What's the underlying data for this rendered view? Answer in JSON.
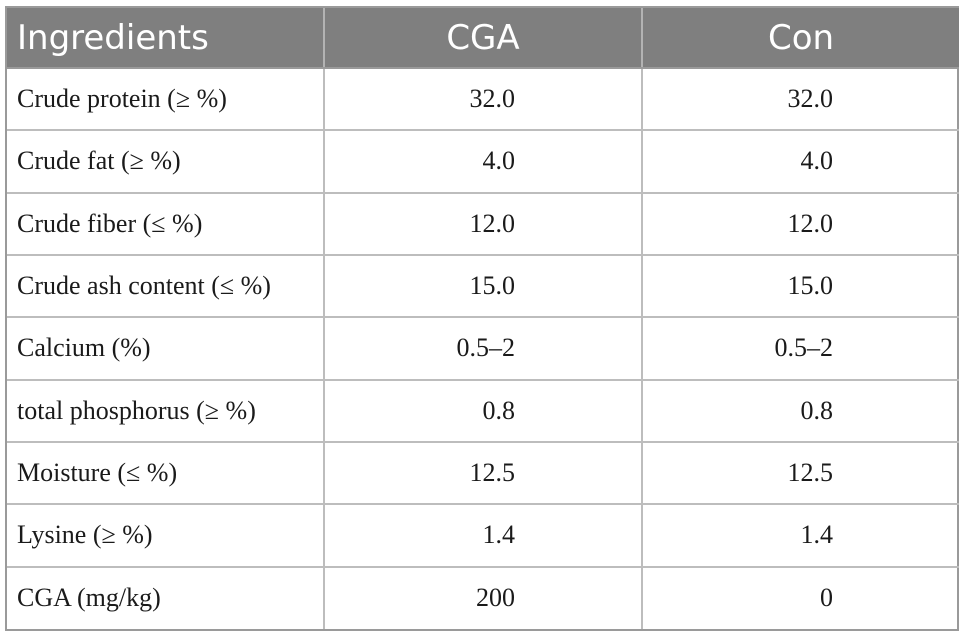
{
  "table": {
    "headers": [
      "Ingredients",
      "CGA",
      "Con"
    ],
    "rows": [
      [
        "Crude protein (≥ %)",
        "32.0",
        "32.0"
      ],
      [
        "Crude fat (≥ %)",
        "4.0",
        "4.0"
      ],
      [
        "Crude fiber (≤ %)",
        "12.0",
        "12.0"
      ],
      [
        "Crude ash content (≤ %)",
        "15.0",
        "15.0"
      ],
      [
        "Calcium (%)",
        "0.5–2",
        "0.5–2"
      ],
      [
        "total phosphorus (≥ %)",
        "0.8",
        "0.8"
      ],
      [
        "Moisture (≤ %)",
        "12.5",
        "12.5"
      ],
      [
        "Lysine (≥ %)",
        "1.4",
        "1.4"
      ],
      [
        "CGA (mg/kg)",
        "200",
        "0"
      ]
    ]
  },
  "colors": {
    "header_bg": "#7f7f7f",
    "header_text": "#ffffff",
    "border": "#9a9a9a",
    "cell_text": "#1a1a1a"
  }
}
